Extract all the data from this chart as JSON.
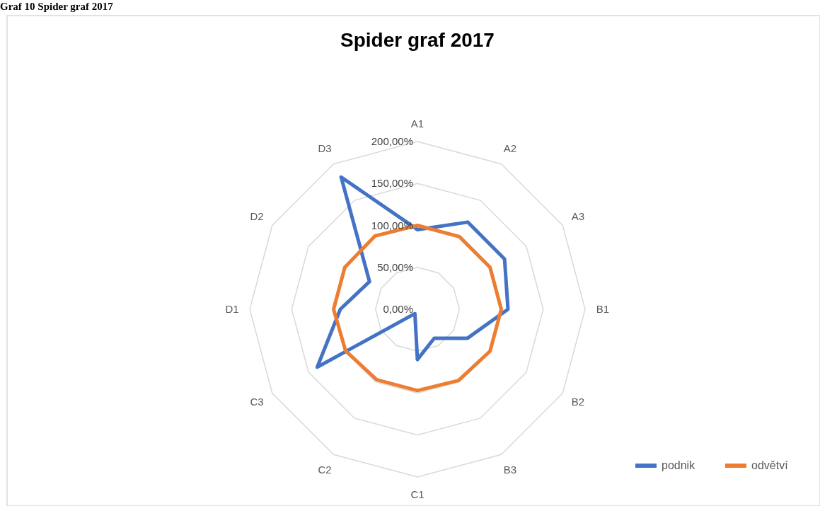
{
  "chart_data": {
    "type": "radar",
    "title": "Spider graf 2017",
    "annotations": [
      "Graf 10 Spider graf 2017"
    ],
    "categories": [
      "A1",
      "A2",
      "A3",
      "B1",
      "B2",
      "B3",
      "C1",
      "C2",
      "C3",
      "D1",
      "D2",
      "D3"
    ],
    "series": [
      {
        "name": "podnik",
        "color": "#4472c4",
        "values": [
          95,
          120,
          120,
          108,
          69,
          40,
          60,
          6,
          138,
          92,
          66,
          182
        ]
      },
      {
        "name": "odvětví",
        "color": "#ed7d31",
        "values": [
          100,
          100,
          100,
          100,
          100,
          98,
          97,
          97,
          99,
          100,
          100,
          101
        ]
      }
    ],
    "ylim": [
      0,
      200
    ],
    "yticks": [
      {
        "value": 0,
        "label": "0,00%"
      },
      {
        "value": 50,
        "label": "50,00%"
      },
      {
        "value": 100,
        "label": "100,00%"
      },
      {
        "value": 150,
        "label": "150,00%"
      },
      {
        "value": 200,
        "label": "200,00%"
      }
    ],
    "grid": true,
    "legend": "bottom right"
  }
}
